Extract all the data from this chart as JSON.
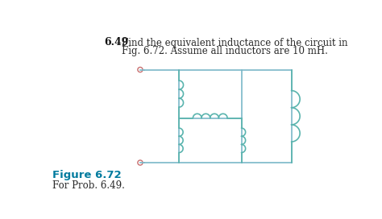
{
  "title_num": "6.49",
  "title_text1": "Find the equivalent inductance of the circuit in",
  "title_text2": "Fig. 6.72. Assume all inductors are 10 mH.",
  "fig_label": "Figure 6.72",
  "fig_sublabel": "For Prob. 6.49.",
  "coil_color": "#5ab4ae",
  "wire_color": "#7ab8c8",
  "bg_color": "#ffffff",
  "fig_label_color": "#007b9e",
  "title_color": "#2a2a2a",
  "title_num_color": "#111111"
}
